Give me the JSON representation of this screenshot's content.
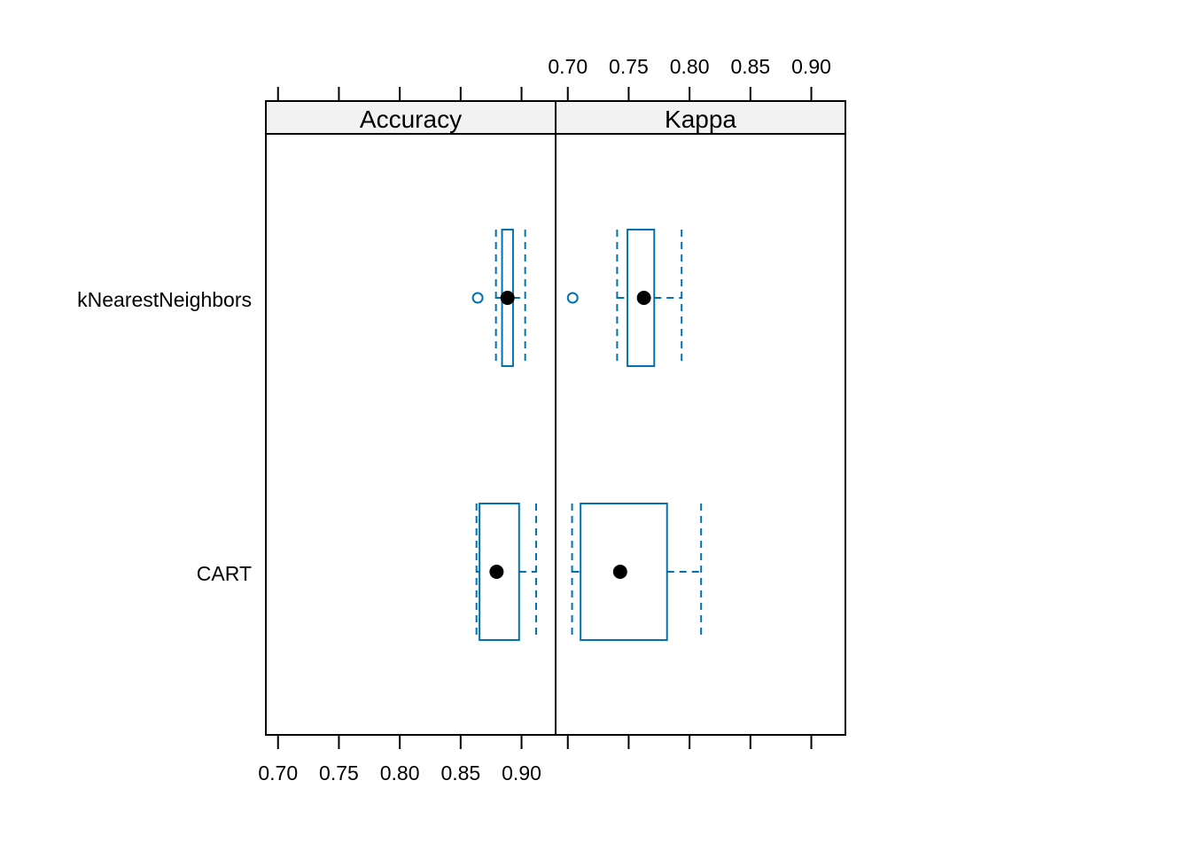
{
  "chart_data": {
    "type": "boxplot",
    "layout": "lattice bwplot, two panels side by side, shared horizontal axis",
    "categories": [
      "kNearestNeighbors",
      "CART"
    ],
    "x_ticks": [
      "0.70",
      "0.75",
      "0.80",
      "0.85",
      "0.90"
    ],
    "x_tick_values": [
      0.7,
      0.75,
      0.8,
      0.85,
      0.9
    ],
    "xlim": [
      0.69,
      0.928
    ],
    "colors": {
      "box": "#0072b2",
      "median_dot": "#000000",
      "strip_bg": "#f2f2f2"
    },
    "panels": [
      {
        "name": "Accuracy",
        "stats": [
          {
            "category": "kNearestNeighbors",
            "whisker_low": 0.879,
            "q1": 0.884,
            "median": 0.8885,
            "q3": 0.893,
            "whisker_high": 0.903,
            "outliers": [
              0.864
            ]
          },
          {
            "category": "CART",
            "whisker_low": 0.863,
            "q1": 0.8655,
            "median": 0.8795,
            "q3": 0.898,
            "whisker_high": 0.912,
            "outliers": []
          }
        ]
      },
      {
        "name": "Kappa",
        "stats": [
          {
            "category": "kNearestNeighbors",
            "whisker_low": 0.7405,
            "q1": 0.749,
            "median": 0.7625,
            "q3": 0.771,
            "whisker_high": 0.7935,
            "outliers": [
              0.704
            ]
          },
          {
            "category": "CART",
            "whisker_low": 0.7035,
            "q1": 0.7105,
            "median": 0.743,
            "q3": 0.7815,
            "whisker_high": 0.8095,
            "outliers": []
          }
        ]
      }
    ]
  }
}
